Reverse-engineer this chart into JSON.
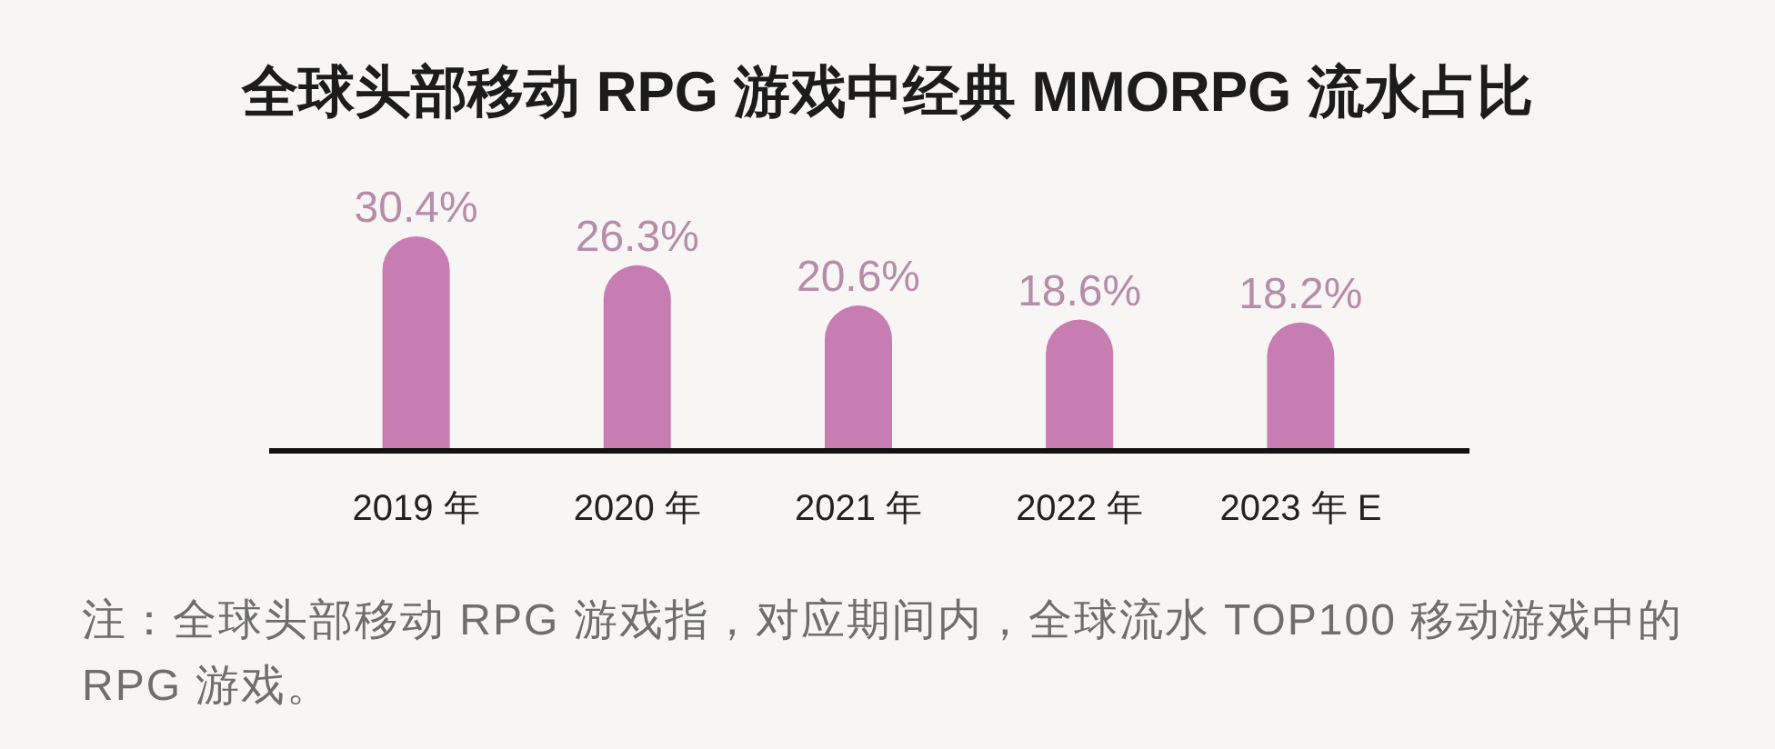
{
  "chart_data": {
    "type": "bar",
    "title": "全球头部移动 RPG 游戏中经典 MMORPG 流水占比",
    "categories": [
      "2019 年",
      "2020 年",
      "2021 年",
      "2022 年",
      "2023 年 E"
    ],
    "values": [
      30.4,
      26.3,
      20.6,
      18.6,
      18.2
    ],
    "value_labels": [
      "30.4%",
      "26.3%",
      "20.6%",
      "18.6%",
      "18.2%"
    ],
    "color": "#c77cb2",
    "annotations": [
      "注：全球头部移动 RPG 游戏指，对应期间内，全球流水 TOP100 移动游戏中的 RPG 游戏。"
    ]
  }
}
